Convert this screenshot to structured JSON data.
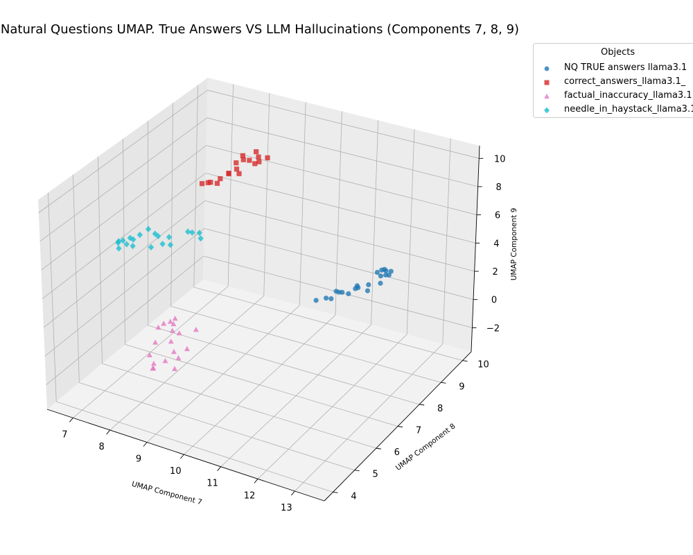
{
  "chart_data": {
    "type": "scatter",
    "title": "Natural Questions UMAP. True Answers VS LLM Hallucinations (Components 7, 8, 9)",
    "xlabel": "UMAP Component 7",
    "ylabel": "UMAP Component 8",
    "zlabel": "UMAP Component 9",
    "xlim": [
      6.3,
      13.8
    ],
    "ylim": [
      3.6,
      10.4
    ],
    "zlim": [
      -3.7,
      10.9
    ],
    "x_ticks": [
      "7",
      "8",
      "9",
      "10",
      "11",
      "12",
      "13"
    ],
    "y_ticks": [
      "4",
      "5",
      "6",
      "7",
      "8",
      "9",
      "10"
    ],
    "z_ticks": [
      "−2",
      "0",
      "2",
      "4",
      "6",
      "8",
      "10"
    ],
    "grid": true,
    "legend_title": "Objects",
    "legend_position": "outside top-right",
    "series": [
      {
        "name": "NQ TRUE answers llama3.1",
        "color": "#1f77b4",
        "marker": "circle",
        "points": [
          [
            12.45,
            8.55,
            3.5
          ],
          [
            12.55,
            8.45,
            3.3
          ],
          [
            12.4,
            8.7,
            3.2
          ],
          [
            12.6,
            8.6,
            3.4
          ],
          [
            12.5,
            8.3,
            2.9
          ],
          [
            12.35,
            8.55,
            3.0
          ],
          [
            12.25,
            8.75,
            3.1
          ],
          [
            12.1,
            8.8,
            2.8
          ],
          [
            12.3,
            9.0,
            2.5
          ],
          [
            12.05,
            8.5,
            2.3
          ],
          [
            12.15,
            8.3,
            2.2
          ],
          [
            11.95,
            8.2,
            2.4
          ],
          [
            11.8,
            8.4,
            2.2
          ],
          [
            12.0,
            8.0,
            2.6
          ],
          [
            11.7,
            7.9,
            2.3
          ],
          [
            11.75,
            8.1,
            2.0
          ],
          [
            11.55,
            8.0,
            2.1
          ],
          [
            11.35,
            8.2,
            1.8
          ],
          [
            11.4,
            7.9,
            1.7
          ],
          [
            11.2,
            8.0,
            1.5
          ],
          [
            11.05,
            7.8,
            1.5
          ]
        ]
      },
      {
        "name": "correct_answers_llama3.1_",
        "color": "#d62728",
        "marker": "square",
        "points": [
          [
            8.0,
            9.35,
            7.7
          ],
          [
            8.15,
            9.15,
            7.75
          ],
          [
            8.05,
            9.0,
            7.65
          ],
          [
            8.2,
            9.6,
            7.8
          ],
          [
            8.3,
            9.55,
            7.55
          ],
          [
            8.15,
            9.4,
            7.4
          ],
          [
            8.35,
            9.5,
            7.3
          ],
          [
            8.45,
            9.7,
            7.4
          ],
          [
            8.4,
            9.25,
            7.5
          ],
          [
            8.1,
            8.95,
            7.3
          ],
          [
            8.2,
            8.9,
            7.1
          ],
          [
            7.95,
            8.85,
            7.0
          ],
          [
            7.85,
            9.0,
            6.8
          ],
          [
            7.75,
            8.8,
            6.6
          ],
          [
            7.8,
            8.6,
            6.55
          ],
          [
            7.65,
            8.55,
            6.6
          ],
          [
            7.55,
            8.6,
            6.45
          ],
          [
            7.45,
            8.5,
            6.45
          ]
        ]
      },
      {
        "name": "factual_inaccuracy_llama3.1",
        "color": "#e377c2",
        "marker": "triangle",
        "points": [
          [
            9.0,
            4.95,
            2.5
          ],
          [
            8.9,
            4.9,
            2.3
          ],
          [
            9.05,
            4.8,
            2.35
          ],
          [
            8.75,
            4.85,
            2.15
          ],
          [
            8.7,
            4.7,
            2.05
          ],
          [
            8.95,
            4.9,
            1.75
          ],
          [
            9.2,
            4.8,
            1.85
          ],
          [
            9.5,
            5.05,
            1.95
          ],
          [
            8.8,
            4.4,
            1.5
          ],
          [
            9.1,
            4.6,
            1.5
          ],
          [
            9.3,
            4.4,
            1.2
          ],
          [
            9.5,
            4.65,
            1.2
          ],
          [
            8.7,
            4.3,
            0.75
          ],
          [
            9.25,
            4.1,
            0.95
          ],
          [
            9.45,
            4.35,
            0.95
          ],
          [
            9.0,
            4.0,
            0.75
          ],
          [
            9.05,
            3.9,
            0.6
          ],
          [
            9.5,
            4.1,
            0.6
          ],
          [
            9.0,
            3.95,
            0.5
          ]
        ]
      },
      {
        "name": "needle_in_haystack_llama3.1",
        "color": "#17becf",
        "marker": "diamond",
        "points": [
          [
            6.8,
            6.2,
            5.0
          ],
          [
            6.65,
            6.25,
            4.8
          ],
          [
            6.8,
            6.5,
            4.8
          ],
          [
            6.6,
            6.3,
            4.6
          ],
          [
            6.8,
            6.35,
            4.55
          ],
          [
            6.95,
            6.4,
            4.9
          ],
          [
            6.75,
            6.1,
            4.55
          ],
          [
            7.0,
            6.3,
            4.6
          ],
          [
            7.0,
            6.6,
            5.0
          ],
          [
            7.1,
            6.8,
            5.2
          ],
          [
            7.25,
            6.85,
            4.9
          ],
          [
            7.3,
            6.9,
            4.7
          ],
          [
            7.6,
            6.9,
            4.8
          ],
          [
            7.55,
            6.7,
            4.55
          ],
          [
            7.4,
            6.45,
            4.55
          ],
          [
            7.7,
            6.8,
            4.45
          ],
          [
            8.1,
            7.1,
            5.15
          ],
          [
            8.2,
            7.25,
            5.0
          ],
          [
            8.05,
            7.0,
            5.3
          ],
          [
            8.3,
            7.15,
            4.8
          ]
        ]
      }
    ]
  }
}
